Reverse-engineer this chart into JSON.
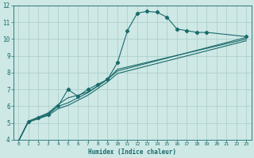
{
  "xlabel": "Humidex (Indice chaleur)",
  "xlim": [
    -0.5,
    23.5
  ],
  "ylim": [
    4,
    12
  ],
  "xticks": [
    0,
    1,
    2,
    3,
    4,
    5,
    6,
    7,
    8,
    9,
    10,
    11,
    12,
    13,
    14,
    15,
    16,
    17,
    18,
    19,
    20,
    21,
    22,
    23
  ],
  "yticks": [
    4,
    5,
    6,
    7,
    8,
    9,
    10,
    11,
    12
  ],
  "background_color": "#cde8e5",
  "grid_color": "#b0d0cd",
  "line_color": "#1a6b6b",
  "line1_x": [
    0,
    1,
    2,
    3,
    4,
    5,
    6,
    7,
    8,
    9,
    10,
    11,
    12,
    13,
    14,
    15,
    16,
    17,
    18,
    19,
    23
  ],
  "line1_y": [
    3.9,
    5.1,
    5.3,
    5.5,
    6.0,
    7.0,
    6.6,
    7.0,
    7.3,
    7.6,
    8.6,
    10.5,
    11.55,
    11.65,
    11.6,
    11.3,
    10.6,
    10.5,
    10.4,
    10.4,
    10.15
  ],
  "line2_x": [
    0,
    1,
    2,
    3,
    4,
    5,
    6,
    7,
    8,
    9,
    10,
    23
  ],
  "line2_y": [
    3.9,
    5.1,
    5.35,
    5.6,
    6.1,
    6.5,
    6.65,
    6.85,
    7.2,
    7.6,
    8.1,
    10.1
  ],
  "line3_x": [
    0,
    1,
    2,
    3,
    4,
    5,
    6,
    7,
    8,
    9,
    10,
    23
  ],
  "line3_y": [
    3.9,
    5.1,
    5.3,
    5.55,
    6.0,
    6.2,
    6.5,
    6.8,
    7.2,
    7.6,
    8.2,
    10.0
  ],
  "line4_x": [
    0,
    1,
    2,
    3,
    4,
    5,
    6,
    7,
    8,
    9,
    10,
    23
  ],
  "line4_y": [
    3.9,
    5.05,
    5.25,
    5.45,
    5.85,
    6.05,
    6.35,
    6.65,
    7.05,
    7.45,
    7.95,
    9.9
  ]
}
